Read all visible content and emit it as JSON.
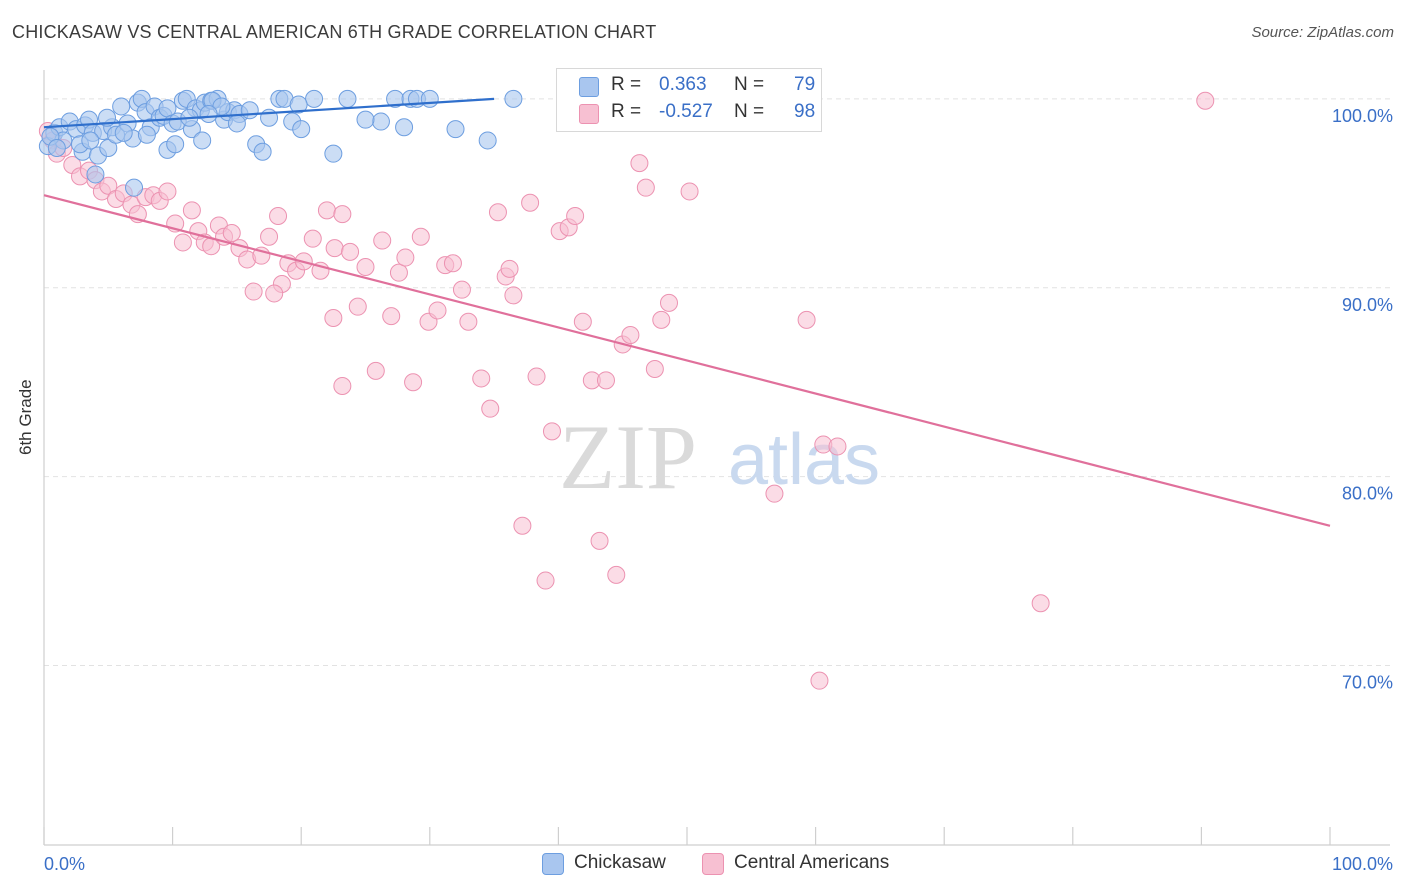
{
  "title": "CHICKASAW VS CENTRAL AMERICAN 6TH GRADE CORRELATION CHART",
  "source": "Source: ZipAtlas.com",
  "watermark": {
    "zip": "ZIP",
    "atlas": "atlas"
  },
  "colors": {
    "blue_fill": "#a9c6ef",
    "blue_stroke": "#6d9ee0",
    "blue_line": "#2f6fcc",
    "pink_fill": "#f7c0d2",
    "pink_stroke": "#ec92b1",
    "pink_line": "#e0709b",
    "tick_text": "#3a6fc7",
    "grid": "#e2e2e2"
  },
  "stats": [
    {
      "r_label": "R =",
      "r_value": "0.363",
      "n_label": "N =",
      "n_value": "79",
      "color": "blue"
    },
    {
      "r_label": "R =",
      "r_value": "-0.527",
      "n_label": "N =",
      "n_value": "98",
      "color": "pink"
    }
  ],
  "legend": [
    {
      "label": "Chickasaw",
      "color": "blue"
    },
    {
      "label": "Central Americans",
      "color": "pink"
    }
  ],
  "chart_data": {
    "type": "scatter",
    "title": "CHICKASAW VS CENTRAL AMERICAN 6TH GRADE CORRELATION CHART",
    "xlabel": "",
    "ylabel": "6th Grade",
    "xlim": [
      0,
      100
    ],
    "ylim": [
      60.5,
      101
    ],
    "x_tick_labels": [
      "0.0%",
      "100.0%"
    ],
    "y_ticks": [
      70,
      80,
      90,
      100
    ],
    "y_tick_labels": [
      "70.0%",
      "80.0%",
      "90.0%",
      "100.0%"
    ],
    "grid": true,
    "series": [
      {
        "name": "Chickasaw",
        "color": "blue",
        "trend": {
          "x": [
            0,
            35
          ],
          "y": [
            98.5,
            100.0
          ]
        },
        "points": [
          [
            0.3,
            97.5
          ],
          [
            0.8,
            98.2
          ],
          [
            1.2,
            98.5
          ],
          [
            1.5,
            97.8
          ],
          [
            2.0,
            98.8
          ],
          [
            2.5,
            98.4
          ],
          [
            3.0,
            97.2
          ],
          [
            3.2,
            98.6
          ],
          [
            3.5,
            98.9
          ],
          [
            3.8,
            98.2
          ],
          [
            4.2,
            97.0
          ],
          [
            4.6,
            98.3
          ],
          [
            5.0,
            97.4
          ],
          [
            5.3,
            98.5
          ],
          [
            4.0,
            96.0
          ],
          [
            5.6,
            98.1
          ],
          [
            6.0,
            99.6
          ],
          [
            6.5,
            98.7
          ],
          [
            6.9,
            97.9
          ],
          [
            7.3,
            99.8
          ],
          [
            7.6,
            100.0
          ],
          [
            7.9,
            99.3
          ],
          [
            8.3,
            98.5
          ],
          [
            8.6,
            99.6
          ],
          [
            9.0,
            99.0
          ],
          [
            9.3,
            99.1
          ],
          [
            9.6,
            99.5
          ],
          [
            10.0,
            98.7
          ],
          [
            10.4,
            98.8
          ],
          [
            10.8,
            99.9
          ],
          [
            11.1,
            100.0
          ],
          [
            11.5,
            98.4
          ],
          [
            11.8,
            99.5
          ],
          [
            12.2,
            99.4
          ],
          [
            12.5,
            99.8
          ],
          [
            13.0,
            99.9
          ],
          [
            13.5,
            100.0
          ],
          [
            14.0,
            98.9
          ],
          [
            14.3,
            99.3
          ],
          [
            14.8,
            99.4
          ],
          [
            15.2,
            99.2
          ],
          [
            7.0,
            95.3
          ],
          [
            9.6,
            97.3
          ],
          [
            12.3,
            97.8
          ],
          [
            13.1,
            99.9
          ],
          [
            13.8,
            99.6
          ],
          [
            16.5,
            97.6
          ],
          [
            17.0,
            97.2
          ],
          [
            18.3,
            100.0
          ],
          [
            18.7,
            100.0
          ],
          [
            19.3,
            98.8
          ],
          [
            20.0,
            98.4
          ],
          [
            21.0,
            100.0
          ],
          [
            22.5,
            97.1
          ],
          [
            23.6,
            100.0
          ],
          [
            26.2,
            98.8
          ],
          [
            27.3,
            100.0
          ],
          [
            28.0,
            98.5
          ],
          [
            28.5,
            100.0
          ],
          [
            29.0,
            100.0
          ],
          [
            30.0,
            100.0
          ],
          [
            32.0,
            98.4
          ],
          [
            34.5,
            97.8
          ],
          [
            36.5,
            100.0
          ],
          [
            2.8,
            97.6
          ],
          [
            3.6,
            97.8
          ],
          [
            0.5,
            98.0
          ],
          [
            1.0,
            97.4
          ],
          [
            6.2,
            98.2
          ],
          [
            8.0,
            98.1
          ],
          [
            10.2,
            97.6
          ],
          [
            11.3,
            99.0
          ],
          [
            12.8,
            99.2
          ],
          [
            15.0,
            98.7
          ],
          [
            17.5,
            99.0
          ],
          [
            19.8,
            99.7
          ],
          [
            25.0,
            98.9
          ],
          [
            16.0,
            99.4
          ],
          [
            4.9,
            99.0
          ]
        ]
      },
      {
        "name": "Central Americans",
        "color": "pink",
        "trend": {
          "x": [
            0,
            100
          ],
          "y": [
            94.9,
            77.4
          ]
        },
        "points": [
          [
            0.3,
            98.3
          ],
          [
            0.7,
            97.8
          ],
          [
            1.0,
            97.1
          ],
          [
            1.5,
            97.4
          ],
          [
            2.2,
            96.5
          ],
          [
            2.8,
            95.9
          ],
          [
            3.5,
            96.2
          ],
          [
            4.0,
            95.7
          ],
          [
            4.5,
            95.1
          ],
          [
            5.0,
            95.4
          ],
          [
            5.6,
            94.7
          ],
          [
            6.2,
            95.0
          ],
          [
            6.8,
            94.4
          ],
          [
            7.3,
            93.9
          ],
          [
            7.9,
            94.8
          ],
          [
            8.5,
            94.9
          ],
          [
            9.0,
            94.6
          ],
          [
            9.6,
            95.1
          ],
          [
            10.2,
            93.4
          ],
          [
            10.8,
            92.4
          ],
          [
            11.5,
            94.1
          ],
          [
            12.0,
            93.0
          ],
          [
            12.5,
            92.4
          ],
          [
            13.0,
            92.2
          ],
          [
            13.6,
            93.3
          ],
          [
            14.0,
            92.7
          ],
          [
            14.6,
            92.9
          ],
          [
            15.2,
            92.1
          ],
          [
            15.8,
            91.5
          ],
          [
            16.3,
            89.8
          ],
          [
            16.9,
            91.7
          ],
          [
            17.5,
            92.7
          ],
          [
            18.2,
            93.8
          ],
          [
            18.5,
            90.2
          ],
          [
            19.0,
            91.3
          ],
          [
            19.6,
            90.9
          ],
          [
            20.2,
            91.4
          ],
          [
            20.9,
            92.6
          ],
          [
            21.5,
            90.9
          ],
          [
            22.0,
            94.1
          ],
          [
            22.6,
            92.1
          ],
          [
            23.2,
            93.9
          ],
          [
            23.8,
            91.9
          ],
          [
            24.4,
            89.0
          ],
          [
            25.0,
            91.1
          ],
          [
            25.8,
            85.6
          ],
          [
            26.3,
            92.5
          ],
          [
            27.0,
            88.5
          ],
          [
            27.6,
            90.8
          ],
          [
            28.1,
            91.6
          ],
          [
            28.7,
            85.0
          ],
          [
            29.3,
            92.7
          ],
          [
            29.9,
            88.2
          ],
          [
            30.6,
            88.8
          ],
          [
            31.2,
            91.2
          ],
          [
            31.8,
            91.3
          ],
          [
            32.5,
            89.9
          ],
          [
            33.0,
            88.2
          ],
          [
            34.0,
            85.2
          ],
          [
            34.7,
            83.6
          ],
          [
            35.3,
            94.0
          ],
          [
            35.9,
            90.6
          ],
          [
            36.5,
            89.6
          ],
          [
            37.2,
            77.4
          ],
          [
            37.8,
            94.5
          ],
          [
            38.3,
            85.3
          ],
          [
            39.0,
            74.5
          ],
          [
            39.5,
            82.4
          ],
          [
            40.1,
            93.0
          ],
          [
            40.8,
            93.2
          ],
          [
            41.3,
            93.8
          ],
          [
            41.9,
            88.2
          ],
          [
            42.6,
            85.1
          ],
          [
            43.2,
            76.6
          ],
          [
            43.7,
            85.1
          ],
          [
            44.5,
            74.8
          ],
          [
            45.0,
            87.0
          ],
          [
            45.6,
            87.5
          ],
          [
            46.3,
            96.6
          ],
          [
            46.8,
            95.3
          ],
          [
            47.5,
            85.7
          ],
          [
            48.0,
            88.3
          ],
          [
            48.6,
            89.2
          ],
          [
            50.2,
            95.1
          ],
          [
            50.9,
            99.9
          ],
          [
            52.3,
            99.6
          ],
          [
            56.8,
            79.1
          ],
          [
            57.2,
            99.6
          ],
          [
            59.3,
            88.3
          ],
          [
            60.3,
            69.2
          ],
          [
            60.6,
            81.7
          ],
          [
            61.7,
            81.6
          ],
          [
            77.5,
            73.3
          ],
          [
            90.3,
            99.9
          ],
          [
            23.2,
            84.8
          ],
          [
            22.5,
            88.4
          ],
          [
            17.9,
            89.7
          ],
          [
            36.2,
            91.0
          ]
        ]
      }
    ]
  }
}
